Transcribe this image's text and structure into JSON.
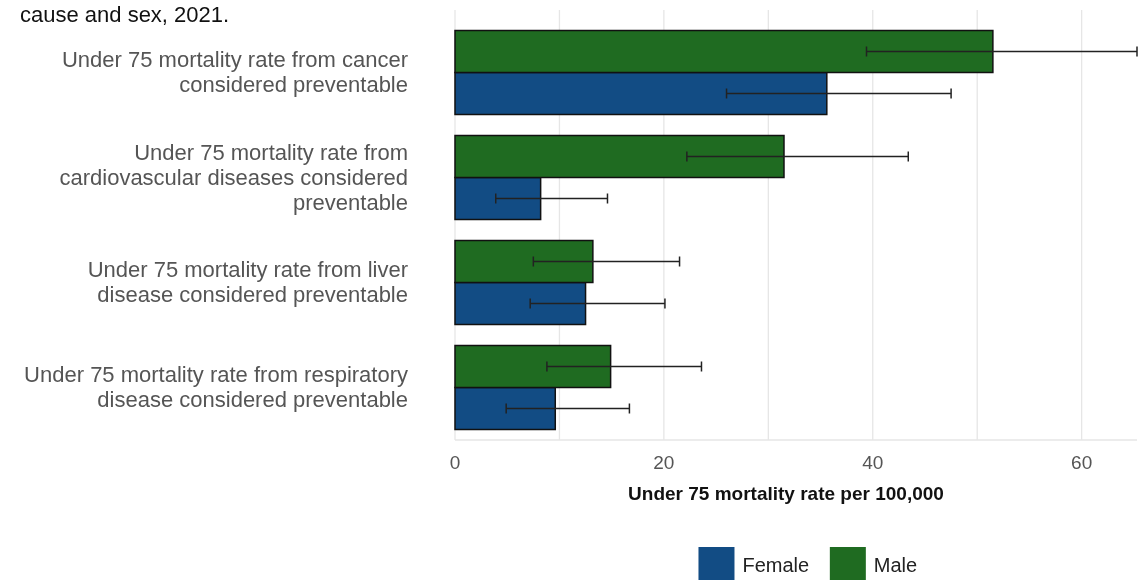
{
  "chart_data": {
    "type": "bar",
    "orientation": "horizontal",
    "title": "cause and sex, 2021.",
    "categories": [
      "Under 75 mortality rate from cancer considered preventable",
      "Under 75 mortality rate from cardiovascular diseases considered preventable",
      "Under 75 mortality rate from liver disease considered preventable",
      "Under 75 mortality rate from respiratory disease considered preventable"
    ],
    "series": [
      {
        "name": "Female",
        "color": "#124c84",
        "values": [
          35.6,
          8.2,
          12.5,
          9.6
        ],
        "errors": [
          [
            26.0,
            47.5
          ],
          [
            3.9,
            14.6
          ],
          [
            7.2,
            20.1
          ],
          [
            4.9,
            16.7
          ]
        ]
      },
      {
        "name": "Male",
        "color": "#1f6b21",
        "values": [
          51.5,
          31.5,
          13.2,
          14.9
        ],
        "errors": [
          [
            39.4,
            65.3
          ],
          [
            22.2,
            43.4
          ],
          [
            7.5,
            21.5
          ],
          [
            8.8,
            23.6
          ]
        ]
      }
    ],
    "xlabel": "Under 75 mortality rate per 100,000",
    "xlim": [
      0,
      65.3
    ],
    "xticks": [
      0,
      20,
      40,
      60
    ],
    "grid": "x",
    "legend": "bottom"
  }
}
